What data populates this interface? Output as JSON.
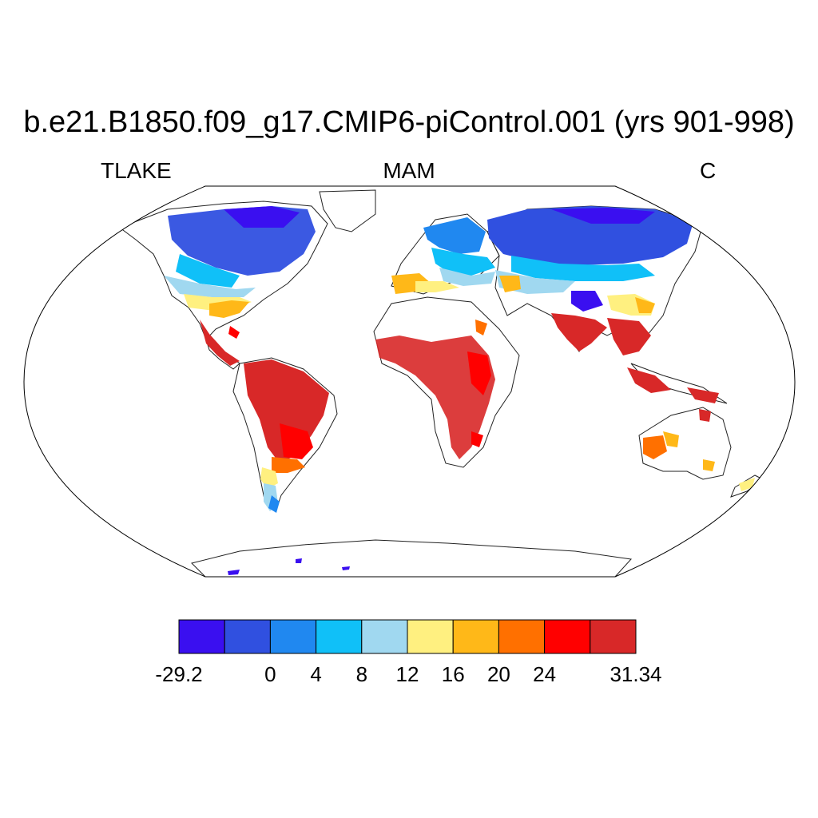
{
  "title": "b.e21.B1850.f09_g17.CMIP6-piControl.001 (yrs 901-998)",
  "subtitle_left": "TLAKE",
  "subtitle_center": "MAM",
  "subtitle_right": "C",
  "projection": "Robinson",
  "colorbar": {
    "colors": [
      "#3a0ff0",
      "#3050e0",
      "#2088f0",
      "#10c0f8",
      "#a0d8f0",
      "#fff080",
      "#ffb818",
      "#ff7000",
      "#ff0000",
      "#d82828"
    ],
    "labels": [
      "-29.2",
      "",
      "0",
      "4",
      "8",
      "12",
      "16",
      "20",
      "24",
      "",
      "31.34"
    ]
  }
}
